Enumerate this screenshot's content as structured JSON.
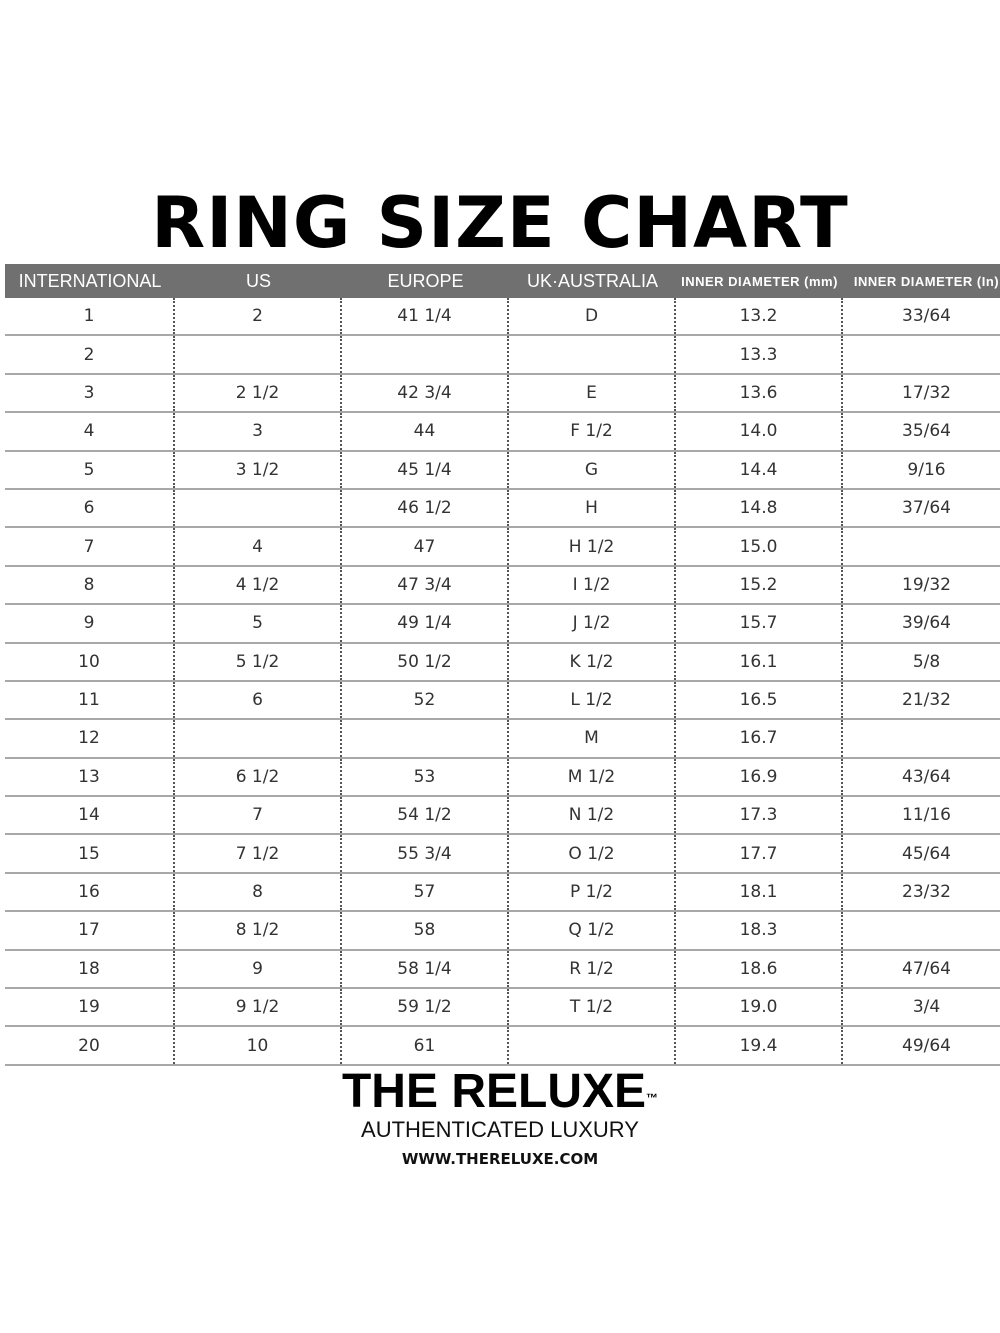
{
  "title": "RING SIZE CHART",
  "table": {
    "headers": [
      "INTERNATIONAL",
      "US",
      "EUROPE",
      "UK·AUSTRALIA",
      "INNER DIAMETER (mm)",
      "INNER DIAMETER (In)"
    ],
    "rows": [
      [
        "1",
        "2",
        "41 1/4",
        "D",
        "13.2",
        "33/64"
      ],
      [
        "2",
        "",
        "",
        "",
        "13.3",
        ""
      ],
      [
        "3",
        "2 1/2",
        "42 3/4",
        "E",
        "13.6",
        "17/32"
      ],
      [
        "4",
        "3",
        "44",
        "F 1/2",
        "14.0",
        "35/64"
      ],
      [
        "5",
        "3 1/2",
        "45 1/4",
        "G",
        "14.4",
        "9/16"
      ],
      [
        "6",
        "",
        "46 1/2",
        "H",
        "14.8",
        "37/64"
      ],
      [
        "7",
        "4",
        "47",
        "H 1/2",
        "15.0",
        ""
      ],
      [
        "8",
        "4 1/2",
        "47 3/4",
        "I 1/2",
        "15.2",
        "19/32"
      ],
      [
        "9",
        "5",
        "49 1/4",
        "J 1/2",
        "15.7",
        "39/64"
      ],
      [
        "10",
        "5 1/2",
        "50 1/2",
        "K 1/2",
        "16.1",
        "5/8"
      ],
      [
        "11",
        "6",
        "52",
        "L 1/2",
        "16.5",
        "21/32"
      ],
      [
        "12",
        "",
        "",
        "M",
        "16.7",
        ""
      ],
      [
        "13",
        "6 1/2",
        "53",
        "M 1/2",
        "16.9",
        "43/64"
      ],
      [
        "14",
        "7",
        "54 1/2",
        "N 1/2",
        "17.3",
        "11/16"
      ],
      [
        "15",
        "7 1/2",
        "55 3/4",
        "O 1/2",
        "17.7",
        "45/64"
      ],
      [
        "16",
        "8",
        "57",
        "P 1/2",
        "18.1",
        "23/32"
      ],
      [
        "17",
        "8 1/2",
        "58",
        "Q 1/2",
        "18.3",
        ""
      ],
      [
        "18",
        "9",
        "58 1/4",
        "R 1/2",
        "18.6",
        "47/64"
      ],
      [
        "19",
        "9 1/2",
        "59 1/2",
        "T 1/2",
        "19.0",
        "3/4"
      ],
      [
        "20",
        "10",
        "61",
        "",
        "19.4",
        "49/64"
      ]
    ]
  },
  "footer": {
    "brand": "THE RELUXE",
    "trademark": "™",
    "tagline": "AUTHENTICATED LUXURY",
    "url": "WWW.THERELUXE.COM"
  },
  "colors": {
    "header_bg": "#707070",
    "row_line": "#a8a8a8"
  }
}
